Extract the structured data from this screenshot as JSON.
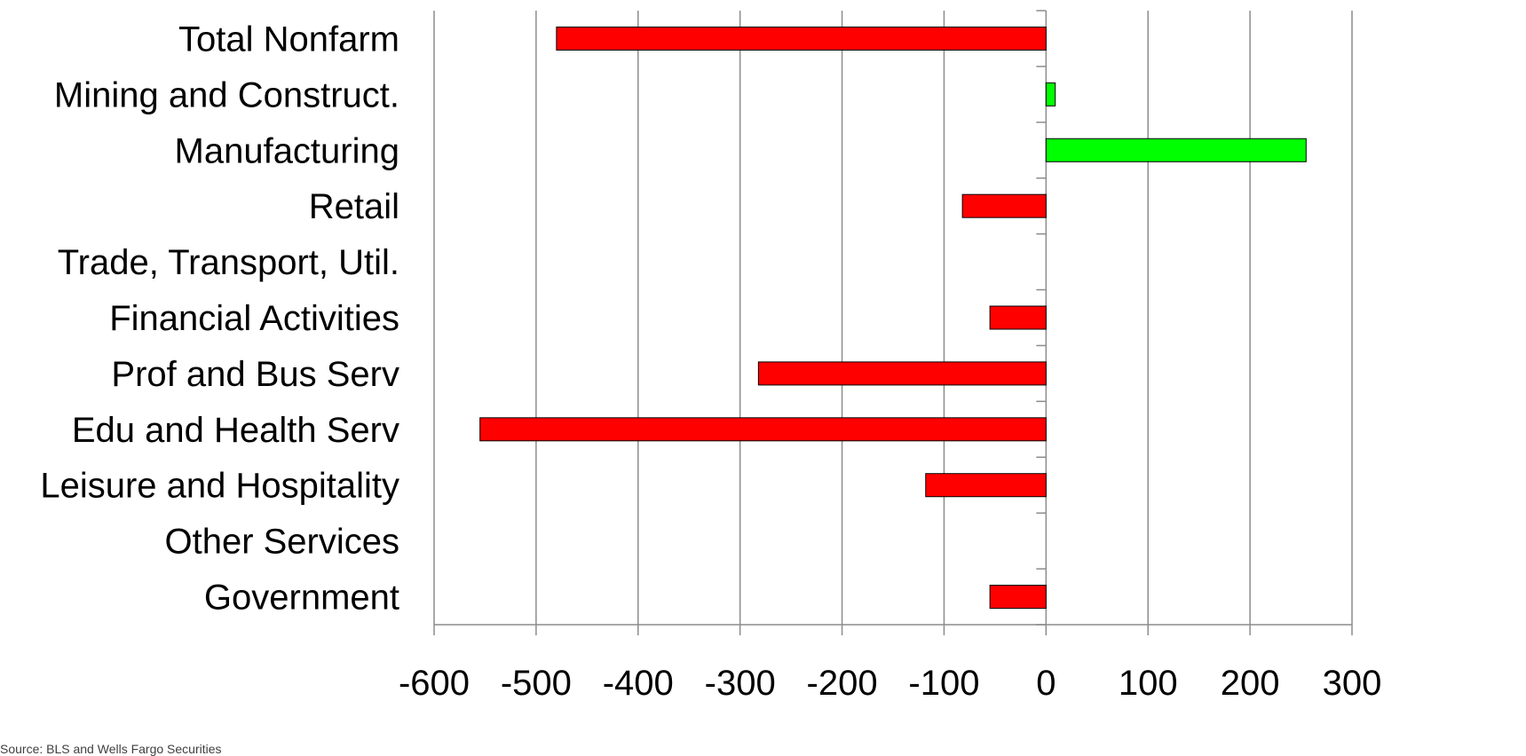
{
  "chart_data": {
    "type": "bar",
    "orientation": "horizontal",
    "categories": [
      "Total Nonfarm",
      "Mining and Construct.",
      "Manufacturing",
      "Retail",
      "Trade, Transport, Util.",
      "Financial Activities",
      "Prof and Bus Serv",
      "Edu and Health Serv",
      "Leisure and Hospitality",
      "Other Services",
      "Government"
    ],
    "values": [
      -480,
      9,
      255,
      -82,
      0,
      -55,
      -282,
      -555,
      -118,
      0,
      -55
    ],
    "xlim": [
      -600,
      300
    ],
    "xticks": [
      -600,
      -500,
      -400,
      -300,
      -200,
      -100,
      0,
      100,
      200,
      300
    ],
    "grid": "vertical",
    "colors": {
      "negative": "#ff0000",
      "positive": "#00ff00",
      "grid": "#8c8c8c",
      "bar_border": "#000000"
    },
    "title": "",
    "xlabel": "",
    "ylabel": ""
  },
  "source_note": "Source: BLS and Wells Fargo Securities"
}
